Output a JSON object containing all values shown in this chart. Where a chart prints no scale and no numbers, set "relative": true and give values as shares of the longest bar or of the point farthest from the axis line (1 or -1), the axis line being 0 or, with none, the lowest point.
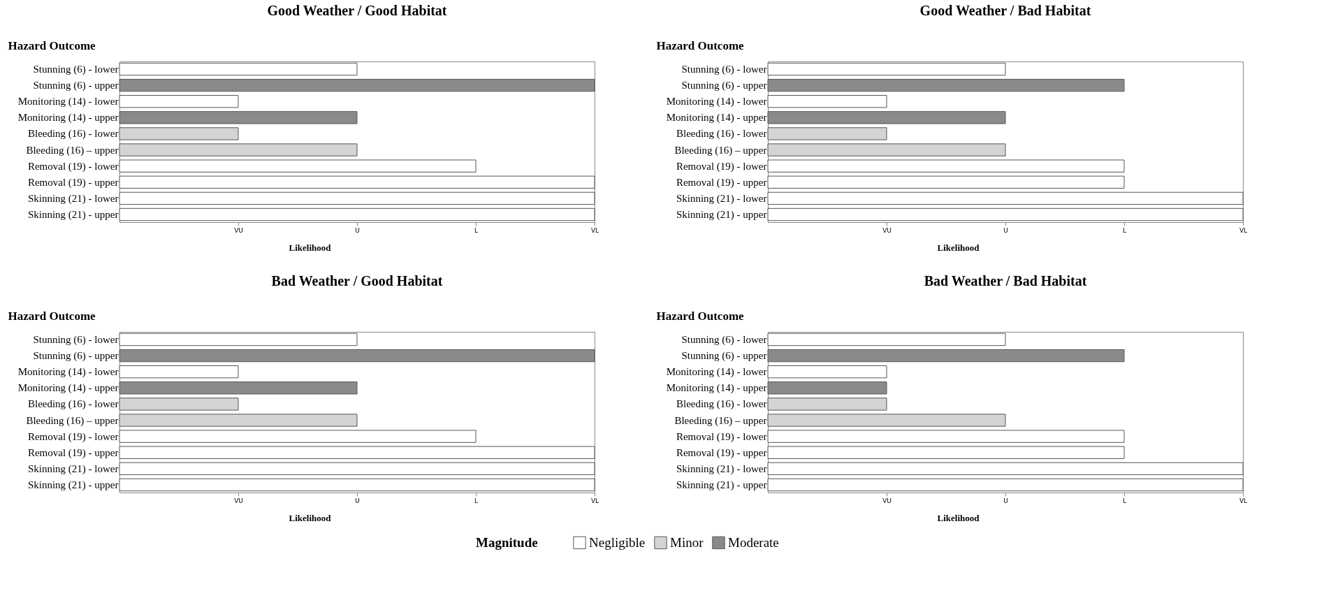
{
  "chart_data": [
    {
      "type": "bar",
      "orientation": "horizontal",
      "relative": true,
      "title": "Good Weather / Good Habitat",
      "ylabel": "Hazard Outcome",
      "xlabel": "Likelihood",
      "legend": "bottom",
      "legend_title": "Magnitude",
      "grid": false,
      "categories": [
        "Stunning (6) - lower",
        "Stunning (6) - upper",
        "Monitoring (14) - lower",
        "Monitoring (14) - upper",
        "Bleeding (16) - lower",
        "Bleeding (16) – upper",
        "Removal (19) - lower",
        "Removal (19) - upper",
        "Skinning (21) - lower",
        "Skinning (21) - upper"
      ],
      "annotations": [
        "VU",
        "U",
        "L",
        "VL"
      ],
      "series": [
        {
          "name": "Negligible",
          "color": "#ffffff",
          "values": [
            0.5,
            null,
            0.25,
            null,
            null,
            null,
            0.75,
            1,
            1,
            1
          ]
        },
        {
          "name": "Minor",
          "color": "#d4d4d4",
          "values": [
            null,
            null,
            null,
            null,
            0.25,
            0.5,
            null,
            null,
            null,
            null
          ]
        },
        {
          "name": "Moderate",
          "color": "#8a8a8a",
          "values": [
            null,
            1,
            null,
            0.5,
            null,
            null,
            null,
            null,
            null,
            null
          ]
        }
      ]
    },
    {
      "type": "bar",
      "orientation": "horizontal",
      "relative": true,
      "title": "Good Weather / Bad Habitat",
      "ylabel": "Hazard Outcome",
      "xlabel": "Likelihood",
      "legend": "bottom",
      "grid": false,
      "categories": [
        "Stunning (6) - lower",
        "Stunning (6) - upper",
        "Monitoring (14) - lower",
        "Monitoring (14) - upper",
        "Bleeding (16) - lower",
        "Bleeding (16) – upper",
        "Removal (19) - lower",
        "Removal (19) - upper",
        "Skinning (21) - lower",
        "Skinning (21) - upper"
      ],
      "annotations": [
        "VU",
        "U",
        "L",
        "VL"
      ],
      "series": [
        {
          "name": "Negligible",
          "color": "#ffffff",
          "values": [
            0.5,
            null,
            0.25,
            null,
            null,
            null,
            0.75,
            0.75,
            1,
            1
          ]
        },
        {
          "name": "Minor",
          "color": "#d4d4d4",
          "values": [
            null,
            null,
            null,
            null,
            0.25,
            0.5,
            null,
            null,
            null,
            null
          ]
        },
        {
          "name": "Moderate",
          "color": "#8a8a8a",
          "values": [
            null,
            0.75,
            null,
            0.5,
            null,
            null,
            null,
            null,
            null,
            null
          ]
        }
      ]
    },
    {
      "type": "bar",
      "orientation": "horizontal",
      "relative": true,
      "title": "Bad Weather / Good Habitat",
      "ylabel": "Hazard Outcome",
      "xlabel": "Likelihood",
      "legend": "bottom",
      "grid": false,
      "categories": [
        "Stunning (6) - lower",
        "Stunning (6) - upper",
        "Monitoring (14) - lower",
        "Monitoring (14) - upper",
        "Bleeding (16) - lower",
        "Bleeding (16) – upper",
        "Removal (19) - lower",
        "Removal (19) - upper",
        "Skinning (21) - lower",
        "Skinning (21) - upper"
      ],
      "annotations": [
        "VU",
        "U",
        "L",
        "VL"
      ],
      "series": [
        {
          "name": "Negligible",
          "color": "#ffffff",
          "values": [
            0.5,
            null,
            0.25,
            null,
            null,
            null,
            0.75,
            1,
            1,
            1
          ]
        },
        {
          "name": "Minor",
          "color": "#d4d4d4",
          "values": [
            null,
            null,
            null,
            null,
            0.25,
            0.5,
            null,
            null,
            null,
            null
          ]
        },
        {
          "name": "Moderate",
          "color": "#8a8a8a",
          "values": [
            null,
            1,
            null,
            0.5,
            null,
            null,
            null,
            null,
            null,
            null
          ]
        }
      ]
    },
    {
      "type": "bar",
      "orientation": "horizontal",
      "relative": true,
      "title": "Bad Weather / Bad Habitat",
      "ylabel": "Hazard Outcome",
      "xlabel": "Likelihood",
      "legend": "bottom",
      "grid": false,
      "categories": [
        "Stunning (6) - lower",
        "Stunning (6) - upper",
        "Monitoring (14) - lower",
        "Monitoring (14) - upper",
        "Bleeding (16) - lower",
        "Bleeding (16) – upper",
        "Removal (19) - lower",
        "Removal (19) - upper",
        "Skinning (21) - lower",
        "Skinning (21) - upper"
      ],
      "annotations": [
        "VU",
        "U",
        "L",
        "VL"
      ],
      "series": [
        {
          "name": "Negligible",
          "color": "#ffffff",
          "values": [
            0.5,
            null,
            0.25,
            null,
            null,
            null,
            0.75,
            0.75,
            1,
            1
          ]
        },
        {
          "name": "Minor",
          "color": "#d4d4d4",
          "values": [
            null,
            null,
            null,
            null,
            0.25,
            0.5,
            null,
            null,
            null,
            null
          ]
        },
        {
          "name": "Moderate",
          "color": "#8a8a8a",
          "values": [
            null,
            0.75,
            null,
            0.25,
            null,
            null,
            null,
            null,
            null,
            null
          ]
        }
      ]
    }
  ]
}
